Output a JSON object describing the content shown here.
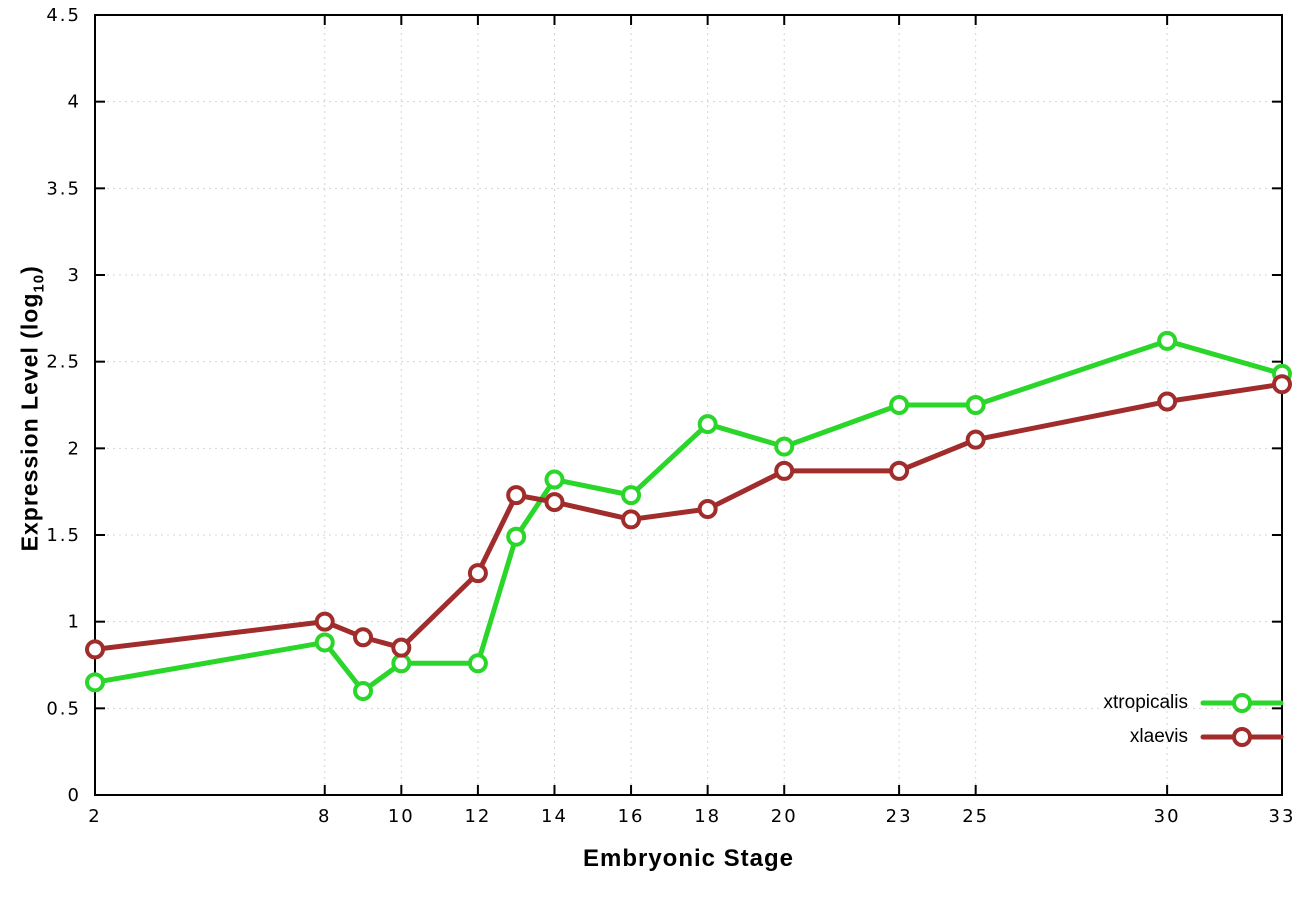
{
  "figure": {
    "xlabel": "Embryonic Stage",
    "ylabel_main": "Expression Level (log",
    "ylabel_sub": "10",
    "ylabel_close": ")"
  },
  "legend": {
    "entries": [
      {
        "label": "xtropicalis",
        "color": "#2ad62a"
      },
      {
        "label": "xlaevis",
        "color": "#a02c2c"
      }
    ]
  },
  "chart_data": {
    "type": "line",
    "title": "",
    "xlabel": "Embryonic Stage",
    "ylabel": "Expression Level (log10)",
    "x": [
      2,
      8,
      9,
      10,
      12,
      13,
      14,
      16,
      18,
      20,
      23,
      25,
      30,
      33
    ],
    "series": [
      {
        "name": "xtropicalis",
        "color": "#2ad62a",
        "values": [
          0.65,
          0.88,
          0.6,
          0.76,
          0.76,
          1.49,
          1.82,
          1.73,
          2.14,
          2.01,
          2.25,
          2.25,
          2.62,
          2.43
        ]
      },
      {
        "name": "xlaevis",
        "color": "#a02c2c",
        "values": [
          0.84,
          1.0,
          0.91,
          0.85,
          1.28,
          1.73,
          1.69,
          1.59,
          1.65,
          1.87,
          1.87,
          2.05,
          2.27,
          2.37
        ]
      }
    ],
    "xlim": [
      2,
      33
    ],
    "ylim": [
      0,
      4.5
    ],
    "xticks": [
      2,
      8,
      10,
      12,
      14,
      16,
      18,
      20,
      23,
      25,
      30,
      33
    ],
    "yticks": [
      0,
      0.5,
      1,
      1.5,
      2,
      2.5,
      3,
      3.5,
      4,
      4.5
    ],
    "ytick_labels": [
      "0",
      "0.5",
      "1",
      "1.5",
      "2",
      "2.5",
      "3",
      "3.5",
      "4",
      "4.5"
    ],
    "grid": true,
    "legend_position": "bottom-right",
    "marker": "open-circle"
  }
}
